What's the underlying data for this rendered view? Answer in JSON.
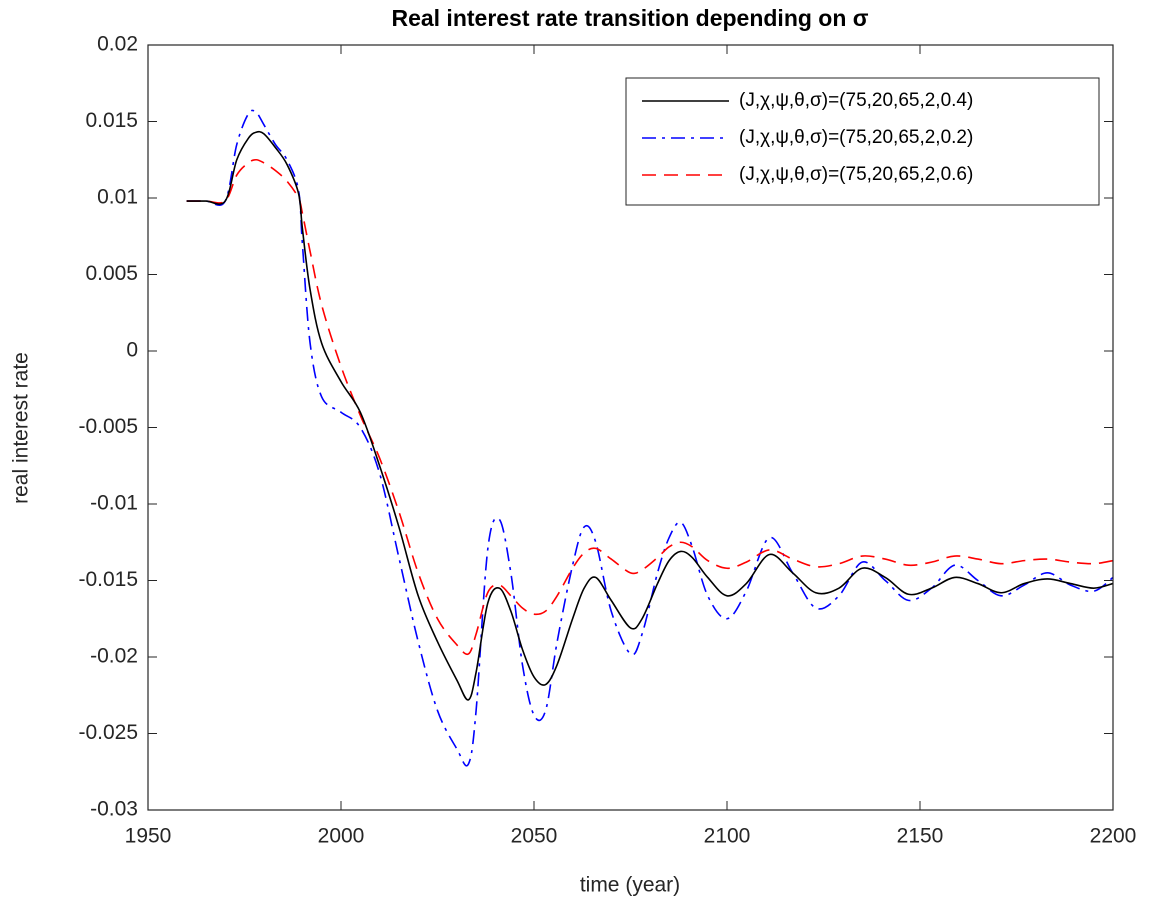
{
  "chart_data": {
    "type": "line",
    "title": "Real interest rate transition depending on σ",
    "xlabel": "time (year)",
    "ylabel": "real interest rate",
    "x": [
      1960,
      1965,
      1970,
      1973,
      1976,
      1978,
      1980,
      1983,
      1986,
      1989,
      1990,
      1992,
      1995,
      2000,
      2005,
      2010,
      2015,
      2020,
      2025,
      2030,
      2033,
      2035,
      2038,
      2041,
      2044,
      2047,
      2050,
      2053,
      2056,
      2060,
      2063,
      2066,
      2070,
      2075,
      2078,
      2082,
      2085,
      2088,
      2091,
      2095,
      2100,
      2105,
      2111,
      2117,
      2123,
      2129,
      2135,
      2141,
      2147,
      2153,
      2159,
      2165,
      2171,
      2177,
      2183,
      2189,
      2195,
      2200
    ],
    "series": [
      {
        "name": "(J,χ,ψ,θ,σ)=(75,20,65,2,0.4)",
        "color": "#000000",
        "linestyle": "-",
        "values": [
          0.0098,
          0.0098,
          0.0098,
          0.0125,
          0.0139,
          0.0143,
          0.0142,
          0.0133,
          0.0122,
          0.0103,
          0.008,
          0.004,
          0.0005,
          -0.002,
          -0.004,
          -0.0075,
          -0.0115,
          -0.016,
          -0.019,
          -0.0215,
          -0.0228,
          -0.021,
          -0.0165,
          -0.0155,
          -0.017,
          -0.0195,
          -0.0213,
          -0.0218,
          -0.0205,
          -0.0175,
          -0.0155,
          -0.0148,
          -0.0163,
          -0.0181,
          -0.0175,
          -0.0152,
          -0.0137,
          -0.0131,
          -0.0135,
          -0.0148,
          -0.016,
          -0.0152,
          -0.0133,
          -0.0145,
          -0.0158,
          -0.0155,
          -0.0142,
          -0.0148,
          -0.0159,
          -0.0155,
          -0.0148,
          -0.0152,
          -0.0158,
          -0.0152,
          -0.0149,
          -0.0152,
          -0.0155,
          -0.0152
        ]
      },
      {
        "name": "(J,χ,ψ,θ,σ)=(75,20,65,2,0.2)",
        "color": "#0000ff",
        "linestyle": "-.",
        "values": [
          0.0098,
          0.0098,
          0.0098,
          0.0135,
          0.0155,
          0.0156,
          0.0148,
          0.0135,
          0.0125,
          0.0105,
          0.007,
          0.0005,
          -0.003,
          -0.004,
          -0.005,
          -0.008,
          -0.0135,
          -0.019,
          -0.0235,
          -0.026,
          -0.027,
          -0.0235,
          -0.013,
          -0.011,
          -0.0145,
          -0.0205,
          -0.0238,
          -0.0235,
          -0.019,
          -0.014,
          -0.0115,
          -0.0125,
          -0.017,
          -0.0198,
          -0.0185,
          -0.0145,
          -0.0122,
          -0.0112,
          -0.0128,
          -0.016,
          -0.0175,
          -0.0157,
          -0.0122,
          -0.0145,
          -0.0168,
          -0.016,
          -0.0138,
          -0.015,
          -0.0163,
          -0.0155,
          -0.014,
          -0.015,
          -0.016,
          -0.0153,
          -0.0145,
          -0.0153,
          -0.0157,
          -0.0148
        ]
      },
      {
        "name": "(J,χ,ψ,θ,σ)=(75,20,65,2,0.6)",
        "color": "#ff0000",
        "linestyle": "--",
        "values": [
          0.0098,
          0.0098,
          0.0098,
          0.0115,
          0.0123,
          0.0125,
          0.0123,
          0.0118,
          0.0111,
          0.01,
          0.009,
          0.0065,
          0.003,
          -0.001,
          -0.0042,
          -0.007,
          -0.0105,
          -0.0145,
          -0.0175,
          -0.0192,
          -0.0198,
          -0.0185,
          -0.0158,
          -0.0153,
          -0.016,
          -0.0168,
          -0.0172,
          -0.017,
          -0.016,
          -0.0142,
          -0.0132,
          -0.0129,
          -0.0136,
          -0.0145,
          -0.0143,
          -0.0135,
          -0.0128,
          -0.0125,
          -0.0128,
          -0.0137,
          -0.0142,
          -0.0138,
          -0.013,
          -0.0136,
          -0.0141,
          -0.0139,
          -0.0134,
          -0.0136,
          -0.014,
          -0.0138,
          -0.0134,
          -0.0136,
          -0.0139,
          -0.0137,
          -0.0136,
          -0.0138,
          -0.0139,
          -0.0137
        ]
      }
    ],
    "xlim": [
      1950,
      2200
    ],
    "xticks": [
      1950,
      2000,
      2050,
      2100,
      2150,
      2200
    ],
    "ylim": [
      -0.03,
      0.02
    ],
    "yticks": [
      -0.03,
      -0.025,
      -0.02,
      -0.015,
      -0.01,
      -0.005,
      0,
      0.005,
      0.01,
      0.015,
      0.02
    ],
    "grid": false,
    "legend": "upper right"
  }
}
